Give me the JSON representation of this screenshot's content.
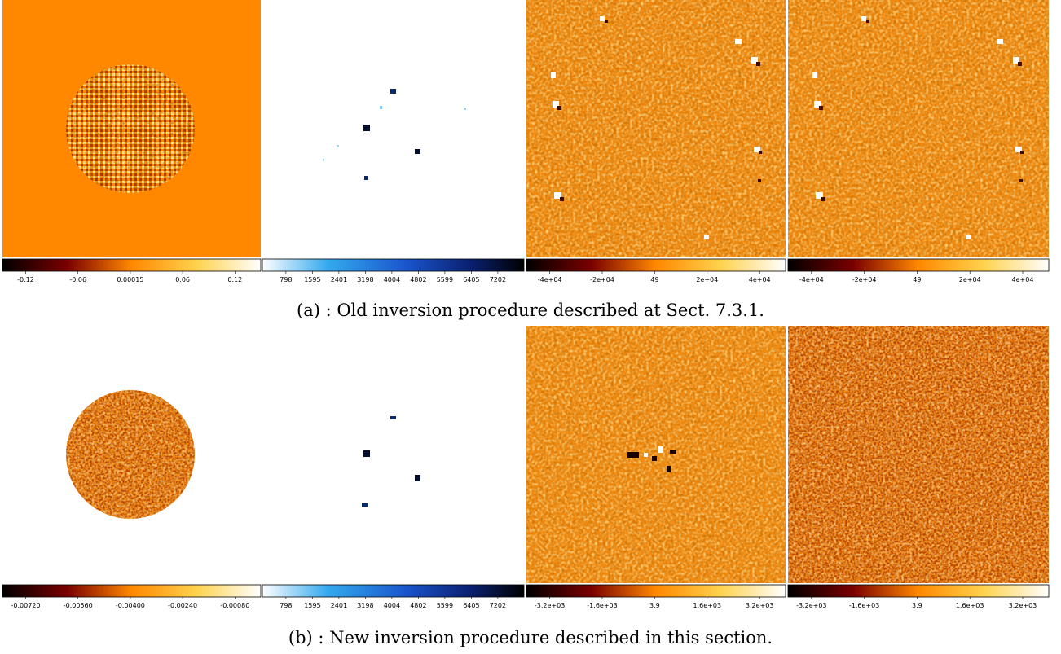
{
  "figure": {
    "rows": [
      {
        "caption": "(a) : Old inversion procedure described at Sect. 7.3.1.",
        "panels": [
          {
            "colorbar_ticks": [
              "-0.12",
              "-0.06",
              "0.00015",
              "0.06",
              "0.12"
            ]
          },
          {
            "colorbar_ticks": [
              "798",
              "1595",
              "2401",
              "3198",
              "4004",
              "4802",
              "5599",
              "6405",
              "7202"
            ]
          },
          {
            "colorbar_ticks": [
              "-4e+04",
              "-2e+04",
              "49",
              "2e+04",
              "4e+04"
            ]
          },
          {
            "colorbar_ticks": [
              "-4e+04",
              "-2e+04",
              "49",
              "2e+04",
              "4e+04"
            ]
          }
        ]
      },
      {
        "caption": "(b) : New inversion procedure described in this section.",
        "panels": [
          {
            "colorbar_ticks": [
              "-0.00720",
              "-0.00560",
              "-0.00400",
              "-0.00240",
              "-0.00080"
            ]
          },
          {
            "colorbar_ticks": [
              "798",
              "1595",
              "2401",
              "3198",
              "4004",
              "4802",
              "5599",
              "6405",
              "7202"
            ]
          },
          {
            "colorbar_ticks": [
              "-3.2e+03",
              "-1.6e+03",
              "3.9",
              "1.6e+03",
              "3.2e+03"
            ]
          },
          {
            "colorbar_ticks": [
              "-3.2e+03",
              "-1.6e+03",
              "3.9",
              "1.6e+03",
              "3.2e+03"
            ]
          }
        ]
      }
    ]
  }
}
